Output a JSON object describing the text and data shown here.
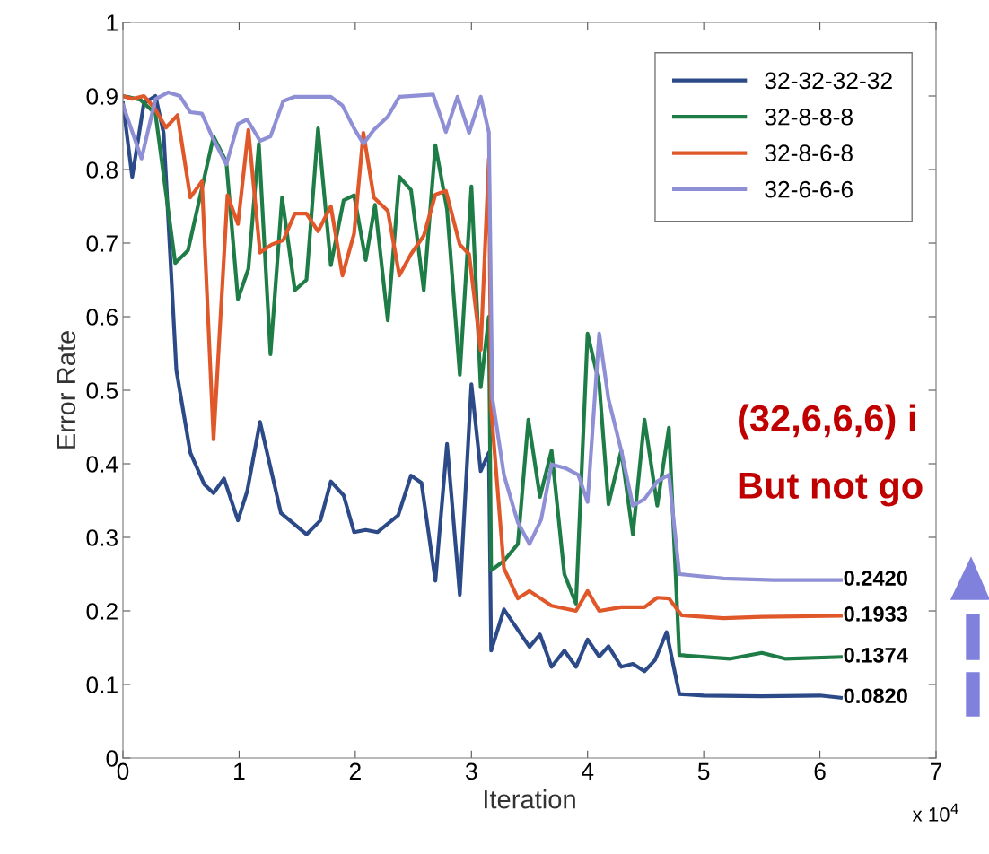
{
  "chart_data": {
    "type": "line",
    "xlabel": "Iteration",
    "ylabel": "Error Rate",
    "xlim": [
      0,
      7
    ],
    "xticks": [
      0,
      1,
      2,
      3,
      4,
      5,
      6,
      7
    ],
    "ylim": [
      0,
      1
    ],
    "yticks": [
      0,
      0.1,
      0.2,
      0.3,
      0.4,
      0.5,
      0.6,
      0.7,
      0.8,
      0.9,
      1
    ],
    "grid": false,
    "legend": "top right",
    "line_style": "solid",
    "marker": "none",
    "series": [
      {
        "name": "32-32-32-32",
        "color": "#2b4a87",
        "x": [
          0,
          0.08,
          0.18,
          0.28,
          0.35,
          0.46,
          0.58,
          0.7,
          0.78,
          0.87,
          0.99,
          1.07,
          1.18,
          1.36,
          1.58,
          1.7,
          1.79,
          1.9,
          1.99,
          2.09,
          2.19,
          2.37,
          2.48,
          2.57,
          2.69,
          2.79,
          2.9,
          3.0,
          3.08,
          3.15,
          3.17,
          3.28,
          3.5,
          3.59,
          3.69,
          3.8,
          3.9,
          4.0,
          4.1,
          4.18,
          4.29,
          4.39,
          4.49,
          4.58,
          4.68,
          4.79,
          5.0,
          5.5,
          6.0,
          6.18
        ],
        "values": [
          0.89,
          0.79,
          0.89,
          0.9,
          0.85,
          0.527,
          0.415,
          0.372,
          0.36,
          0.38,
          0.323,
          0.363,
          0.457,
          0.333,
          0.304,
          0.323,
          0.376,
          0.357,
          0.307,
          0.31,
          0.307,
          0.33,
          0.384,
          0.374,
          0.241,
          0.427,
          0.222,
          0.508,
          0.39,
          0.415,
          0.146,
          0.202,
          0.151,
          0.168,
          0.124,
          0.146,
          0.124,
          0.161,
          0.138,
          0.152,
          0.124,
          0.128,
          0.118,
          0.133,
          0.171,
          0.087,
          0.085,
          0.084,
          0.085,
          0.082
        ],
        "value_labels": [
          null,
          null,
          null,
          null,
          null,
          null,
          null,
          null,
          null,
          null,
          null,
          null,
          null,
          null,
          null,
          null,
          null,
          null,
          null,
          null,
          null,
          null,
          null,
          null,
          null,
          null,
          null,
          null,
          null,
          null,
          null,
          null,
          null,
          null,
          null,
          null,
          null,
          null,
          null,
          null,
          null,
          null,
          null,
          null,
          null,
          null,
          null,
          null,
          null,
          "0.0820"
        ]
      },
      {
        "name": "32-8-8-8",
        "color": "#1e7d46",
        "x": [
          0,
          0.15,
          0.28,
          0.45,
          0.56,
          0.78,
          0.89,
          0.99,
          1.08,
          1.17,
          1.27,
          1.37,
          1.48,
          1.58,
          1.68,
          1.79,
          1.9,
          1.99,
          2.09,
          2.17,
          2.28,
          2.38,
          2.48,
          2.59,
          2.69,
          2.79,
          2.9,
          3.0,
          3.08,
          3.15,
          3.17,
          3.28,
          3.4,
          3.49,
          3.59,
          3.69,
          3.8,
          3.9,
          4.0,
          4.1,
          4.18,
          4.29,
          4.39,
          4.49,
          4.6,
          4.7,
          4.79,
          5.23,
          5.5,
          5.7,
          6.18
        ],
        "values": [
          0.9,
          0.895,
          0.876,
          0.673,
          0.69,
          0.845,
          0.81,
          0.624,
          0.665,
          0.835,
          0.549,
          0.762,
          0.636,
          0.65,
          0.856,
          0.67,
          0.758,
          0.765,
          0.677,
          0.752,
          0.595,
          0.79,
          0.772,
          0.636,
          0.833,
          0.746,
          0.521,
          0.777,
          0.504,
          0.6,
          0.255,
          0.268,
          0.291,
          0.46,
          0.355,
          0.418,
          0.25,
          0.21,
          0.577,
          0.509,
          0.345,
          0.418,
          0.304,
          0.46,
          0.343,
          0.449,
          0.14,
          0.135,
          0.143,
          0.135,
          0.1374
        ],
        "value_labels": [
          null,
          null,
          null,
          null,
          null,
          null,
          null,
          null,
          null,
          null,
          null,
          null,
          null,
          null,
          null,
          null,
          null,
          null,
          null,
          null,
          null,
          null,
          null,
          null,
          null,
          null,
          null,
          null,
          null,
          null,
          null,
          null,
          null,
          null,
          null,
          null,
          null,
          null,
          null,
          null,
          null,
          null,
          null,
          null,
          null,
          null,
          null,
          null,
          null,
          null,
          "0.1374"
        ]
      },
      {
        "name": "32-8-6-8",
        "color": "#e0582a",
        "x": [
          0,
          0.08,
          0.18,
          0.27,
          0.37,
          0.47,
          0.58,
          0.68,
          0.78,
          0.9,
          0.99,
          1.08,
          1.18,
          1.28,
          1.38,
          1.48,
          1.58,
          1.68,
          1.79,
          1.89,
          1.99,
          2.07,
          2.16,
          2.28,
          2.38,
          2.48,
          2.59,
          2.69,
          2.78,
          2.9,
          2.98,
          3.08,
          3.15,
          3.17,
          3.28,
          3.4,
          3.5,
          3.69,
          3.9,
          4.0,
          4.1,
          4.29,
          4.49,
          4.6,
          4.7,
          4.81,
          5.17,
          5.5,
          6.18
        ],
        "values": [
          0.9,
          0.896,
          0.9,
          0.884,
          0.857,
          0.874,
          0.762,
          0.784,
          0.433,
          0.765,
          0.726,
          0.854,
          0.687,
          0.698,
          0.704,
          0.74,
          0.74,
          0.716,
          0.75,
          0.656,
          0.713,
          0.85,
          0.762,
          0.744,
          0.656,
          0.685,
          0.71,
          0.766,
          0.771,
          0.698,
          0.685,
          0.555,
          0.815,
          0.474,
          0.258,
          0.217,
          0.227,
          0.207,
          0.2,
          0.227,
          0.2,
          0.205,
          0.205,
          0.218,
          0.217,
          0.194,
          0.19,
          0.192,
          0.1933
        ],
        "value_labels": [
          null,
          null,
          null,
          null,
          null,
          null,
          null,
          null,
          null,
          null,
          null,
          null,
          null,
          null,
          null,
          null,
          null,
          null,
          null,
          null,
          null,
          null,
          null,
          null,
          null,
          null,
          null,
          null,
          null,
          null,
          null,
          null,
          null,
          null,
          null,
          null,
          null,
          null,
          null,
          null,
          null,
          null,
          null,
          null,
          null,
          null,
          null,
          null,
          "0.1933"
        ]
      },
      {
        "name": "32-6-6-6",
        "color": "#8f8fd6",
        "x": [
          0,
          0.16,
          0.28,
          0.39,
          0.49,
          0.58,
          0.68,
          0.77,
          0.89,
          0.99,
          1.07,
          1.18,
          1.27,
          1.38,
          1.48,
          1.79,
          1.89,
          1.99,
          2.07,
          2.16,
          2.28,
          2.38,
          2.67,
          2.78,
          2.88,
          2.98,
          3.08,
          3.15,
          3.18,
          3.28,
          3.4,
          3.5,
          3.6,
          3.69,
          3.81,
          3.92,
          4.0,
          4.1,
          4.18,
          4.29,
          4.39,
          4.49,
          4.6,
          4.7,
          4.79,
          5.17,
          5.6,
          6.18
        ],
        "values": [
          0.888,
          0.815,
          0.896,
          0.905,
          0.9,
          0.878,
          0.876,
          0.844,
          0.807,
          0.862,
          0.868,
          0.839,
          0.845,
          0.893,
          0.899,
          0.899,
          0.887,
          0.856,
          0.835,
          0.854,
          0.872,
          0.899,
          0.902,
          0.851,
          0.899,
          0.85,
          0.899,
          0.851,
          0.49,
          0.385,
          0.32,
          0.291,
          0.324,
          0.399,
          0.394,
          0.385,
          0.348,
          0.577,
          0.488,
          0.418,
          0.343,
          0.352,
          0.376,
          0.385,
          0.25,
          0.244,
          0.242,
          0.242
        ],
        "value_labels": [
          null,
          null,
          null,
          null,
          null,
          null,
          null,
          null,
          null,
          null,
          null,
          null,
          null,
          null,
          null,
          null,
          null,
          null,
          null,
          null,
          null,
          null,
          null,
          null,
          null,
          null,
          null,
          null,
          null,
          null,
          null,
          null,
          null,
          null,
          null,
          null,
          null,
          null,
          null,
          null,
          null,
          null,
          null,
          null,
          null,
          null,
          null,
          "0.2420"
        ]
      }
    ],
    "annotations": [
      "x 10$^{4}$",
      "(32,6,6,6) i",
      "But not go"
    ]
  }
}
